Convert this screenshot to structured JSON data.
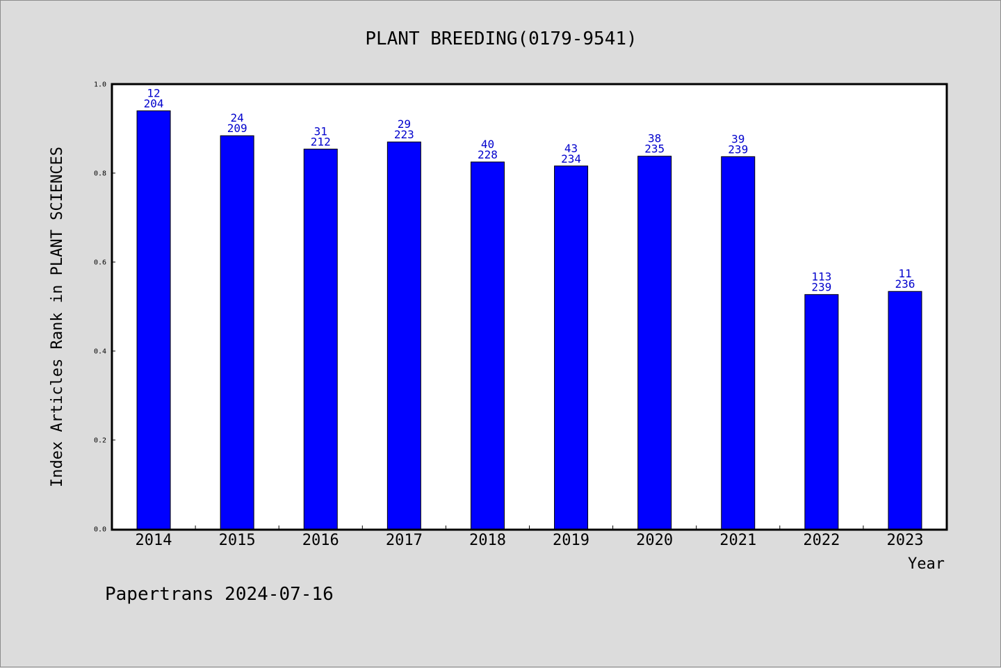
{
  "chart_data": {
    "type": "bar",
    "title": "PLANT BREEDING(0179-9541)",
    "xlabel": "Year",
    "ylabel": "Index Articles Rank in PLANT SCIENCES",
    "ylim": [
      0,
      1.0
    ],
    "yticks": [
      "0.0",
      "0.2",
      "0.4",
      "0.6",
      "0.8",
      "1.0"
    ],
    "grid": false,
    "bar_color": "#0000ff",
    "label_color": "#0000cc",
    "categories": [
      "2014",
      "2015",
      "2016",
      "2017",
      "2018",
      "2019",
      "2020",
      "2021",
      "2022",
      "2023"
    ],
    "values": [
      0.94,
      0.884,
      0.854,
      0.87,
      0.825,
      0.816,
      0.838,
      0.837,
      0.527,
      0.534
    ],
    "rank": [
      "12",
      "24",
      "31",
      "29",
      "40",
      "43",
      "38",
      "39",
      "113",
      "11"
    ],
    "total": [
      "204",
      "209",
      "212",
      "223",
      "228",
      "234",
      "235",
      "239",
      "239",
      "236"
    ]
  },
  "footer": "Papertrans 2024-07-16"
}
